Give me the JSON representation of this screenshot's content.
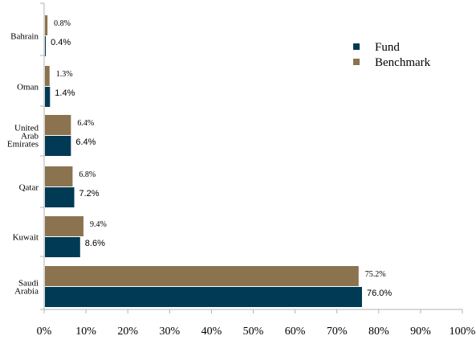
{
  "chart_data": {
    "type": "bar",
    "orientation": "horizontal",
    "categories": [
      [
        "Bahrain"
      ],
      [
        "Oman"
      ],
      [
        "United",
        "Arab",
        "Emirates"
      ],
      [
        "Qatar"
      ],
      [
        "Kuwait"
      ],
      [
        "Saudi",
        "Arabia"
      ]
    ],
    "series": [
      {
        "name": "Fund",
        "color": "#003a54",
        "values": [
          0.4,
          1.4,
          6.4,
          7.2,
          8.6,
          76.0
        ],
        "labels": [
          "0.4%",
          "1.4%",
          "6.4%",
          "7.2%",
          "8.6%",
          "76.0%"
        ]
      },
      {
        "name": "Benchmark",
        "color": "#8c7350",
        "values": [
          0.8,
          1.3,
          6.4,
          6.8,
          9.4,
          75.2
        ],
        "labels": [
          "0.8%",
          "1.3%",
          "6.4%",
          "6.8%",
          "9.4%",
          "75.2%"
        ]
      }
    ],
    "xlim": [
      0,
      100
    ],
    "xticks": [
      "0%",
      "10%",
      "20%",
      "30%",
      "40%",
      "50%",
      "60%",
      "70%",
      "80%",
      "90%",
      "100%"
    ],
    "grid": false,
    "legend": "top-right",
    "axis_color": "#b3b3b3"
  }
}
